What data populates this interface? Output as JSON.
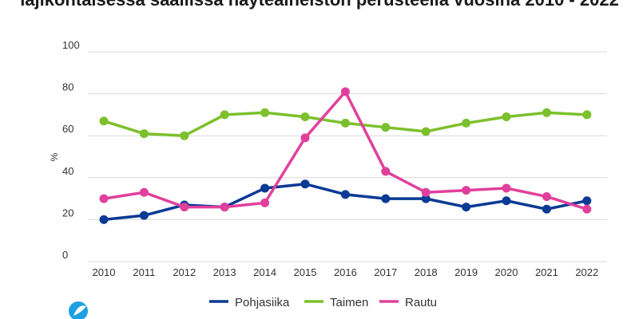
{
  "chart_data": {
    "type": "line",
    "title": "lajikohtaisessa saaliissa näyteaineiston perusteella vuosina 2010 - 2022",
    "ylabel": "%",
    "xlabel": "",
    "x": [
      "2010",
      "2011",
      "2012",
      "2013",
      "2014",
      "2015",
      "2016",
      "2017",
      "2018",
      "2019",
      "2020",
      "2021",
      "2022"
    ],
    "ylim": [
      0,
      100
    ],
    "yticks": [
      0,
      20,
      40,
      60,
      80,
      100
    ],
    "grid": "horizontal",
    "legend": "bottom",
    "series": [
      {
        "name": "Pohjasiika",
        "color": "#0a3a94",
        "values": [
          20,
          22,
          27,
          26,
          35,
          37,
          32,
          30,
          30,
          26,
          29,
          25,
          29
        ]
      },
      {
        "name": "Taimen",
        "color": "#7cc02c",
        "values": [
          67,
          61,
          60,
          70,
          71,
          69,
          66,
          64,
          62,
          66,
          69,
          71,
          70
        ]
      },
      {
        "name": "Rautu",
        "color": "#e0409c",
        "values": [
          30,
          33,
          26,
          26,
          28,
          59,
          81,
          43,
          33,
          34,
          35,
          31,
          25
        ]
      }
    ]
  },
  "logo": {
    "name": "logo-icon",
    "color": "#1da1e0"
  }
}
